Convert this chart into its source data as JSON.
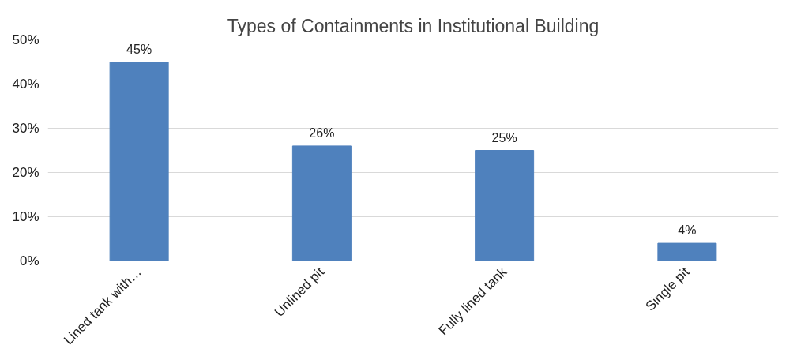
{
  "chart_data": {
    "type": "bar",
    "title": "Types of Containments in Institutional Building",
    "categories": [
      "Lined tank with…",
      "Unlined pit",
      "Fully lined tank",
      "Single pit"
    ],
    "values": [
      45,
      26,
      25,
      4
    ],
    "color": "#4f81bd",
    "value_labels": [
      "45%",
      "26%",
      "25%",
      "4%"
    ],
    "ylim": [
      0,
      50
    ],
    "yticks": [
      {
        "value": 0,
        "label": "0%"
      },
      {
        "value": 10,
        "label": "10%"
      },
      {
        "value": 20,
        "label": "20%"
      },
      {
        "value": 30,
        "label": "30%"
      },
      {
        "value": 40,
        "label": "40%"
      },
      {
        "value": 50,
        "label": "50%"
      }
    ],
    "grid": "y"
  }
}
